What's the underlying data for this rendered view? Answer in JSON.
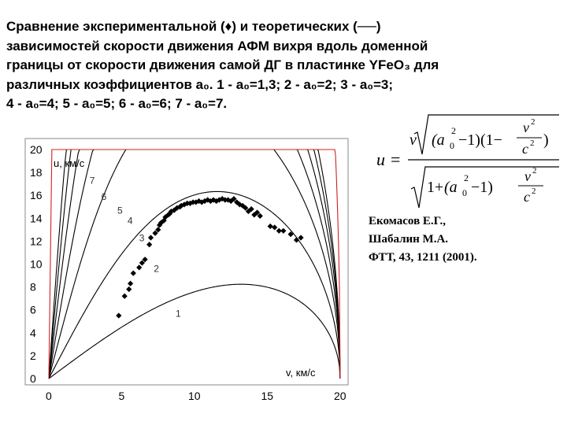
{
  "caption": {
    "lines": [
      "Сравнение экспериментальной (♦) и теоретических (──)",
      "зависимостей скорости движения АФМ  вихря вдоль доменной",
      "границы от скорости движения самой ДГ в пластинке YFeO₃ для",
      "различных коэффициентов a₀.  1 -  a₀=1,3;  2 - a₀=2;  3 - a₀=3;",
      "4 - a₀=4;          5 - a₀=5;    6 - a₀=6;    7 - a₀=7."
    ]
  },
  "reference": {
    "authors": [
      "Екомасов Е.Г.,",
      "Шабалин М.А."
    ],
    "journal": "ФТТ, 43, 1211 (2001)."
  },
  "formula": {
    "lhs": "u",
    "eq": "=",
    "top_v": "v",
    "top_a0": "a",
    "top_sub": "0",
    "top_rest": "(a",
    "top_sub2": "0",
    "top_sq": "2",
    "top_minus1": "−1)(1−",
    "frac_num": "v",
    "frac_num_sq": "2",
    "frac_den": "c",
    "frac_den_sq": "2",
    "close": ")",
    "bot_one": "1+",
    "bot_a": "(a",
    "bot_sub": "0",
    "bot_sq": "2",
    "bot_minus1": "−1)"
  },
  "chart_data": {
    "type": "line",
    "xlabel": "v, км/с",
    "ylabel": "u, км/с",
    "xlim": [
      0,
      20
    ],
    "ylim": [
      0,
      20
    ],
    "x_ticks": [
      0,
      5,
      10,
      15,
      20
    ],
    "y_ticks": [
      0,
      2,
      4,
      6,
      8,
      10,
      12,
      14,
      16,
      18,
      20
    ],
    "c": 20,
    "series": [
      {
        "name": "1",
        "a0": 1.3,
        "label": "1",
        "label_x": 8.7,
        "label_y": 5.4,
        "color": "#000000"
      },
      {
        "name": "2",
        "a0": 2,
        "label": "2",
        "label_x": 7.2,
        "label_y": 9.3,
        "color": "#000000"
      },
      {
        "name": "3",
        "a0": 3,
        "label": "3",
        "label_x": 6.2,
        "label_y": 12.0,
        "color": "#000000"
      },
      {
        "name": "4",
        "a0": 4,
        "label": "4",
        "label_x": 5.4,
        "label_y": 13.5,
        "color": "#000000"
      },
      {
        "name": "5",
        "a0": 5,
        "label": "5",
        "label_x": 4.7,
        "label_y": 14.4,
        "color": "#000000"
      },
      {
        "name": "6",
        "a0": 6,
        "label": "6",
        "label_x": 3.6,
        "label_y": 15.6,
        "color": "#000000"
      },
      {
        "name": "7",
        "a0": 7,
        "label": "7",
        "label_x": 2.8,
        "label_y": 17.0,
        "color": "#000000"
      },
      {
        "name": "limit",
        "a0": 30,
        "label": "",
        "color": "#d02020"
      }
    ],
    "experimental": {
      "marker": "diamond",
      "x": [
        4.8,
        5.2,
        5.5,
        5.6,
        5.8,
        6.2,
        6.4,
        6.6,
        6.9,
        7.0,
        7.3,
        7.5,
        7.6,
        7.7,
        7.9,
        8.0,
        8.2,
        8.3,
        8.4,
        8.6,
        8.8,
        9.0,
        9.1,
        9.3,
        9.5,
        9.7,
        9.9,
        10.1,
        10.3,
        10.5,
        10.7,
        10.9,
        11.1,
        11.3,
        11.5,
        11.7,
        11.9,
        12.1,
        12.3,
        12.5,
        12.7,
        12.9,
        13.1,
        13.3,
        13.5,
        13.7,
        13.9,
        14.1,
        14.3,
        14.5,
        15.2,
        15.5,
        15.8,
        16.1,
        16.6,
        17.0,
        17.3
      ],
      "y": [
        5.5,
        7.2,
        7.8,
        8.3,
        9.2,
        9.7,
        10.1,
        10.4,
        11.7,
        12.3,
        12.7,
        13.0,
        13.4,
        13.6,
        13.8,
        14.1,
        14.3,
        14.4,
        14.6,
        14.7,
        14.9,
        15.0,
        15.1,
        15.2,
        15.3,
        15.3,
        15.4,
        15.4,
        15.5,
        15.4,
        15.5,
        15.6,
        15.5,
        15.6,
        15.5,
        15.6,
        15.7,
        15.6,
        15.6,
        15.5,
        15.7,
        15.4,
        15.2,
        15.1,
        14.9,
        14.6,
        14.8,
        14.3,
        14.5,
        14.2,
        13.3,
        13.2,
        12.9,
        12.9,
        12.6,
        12.1,
        12.3
      ]
    }
  }
}
